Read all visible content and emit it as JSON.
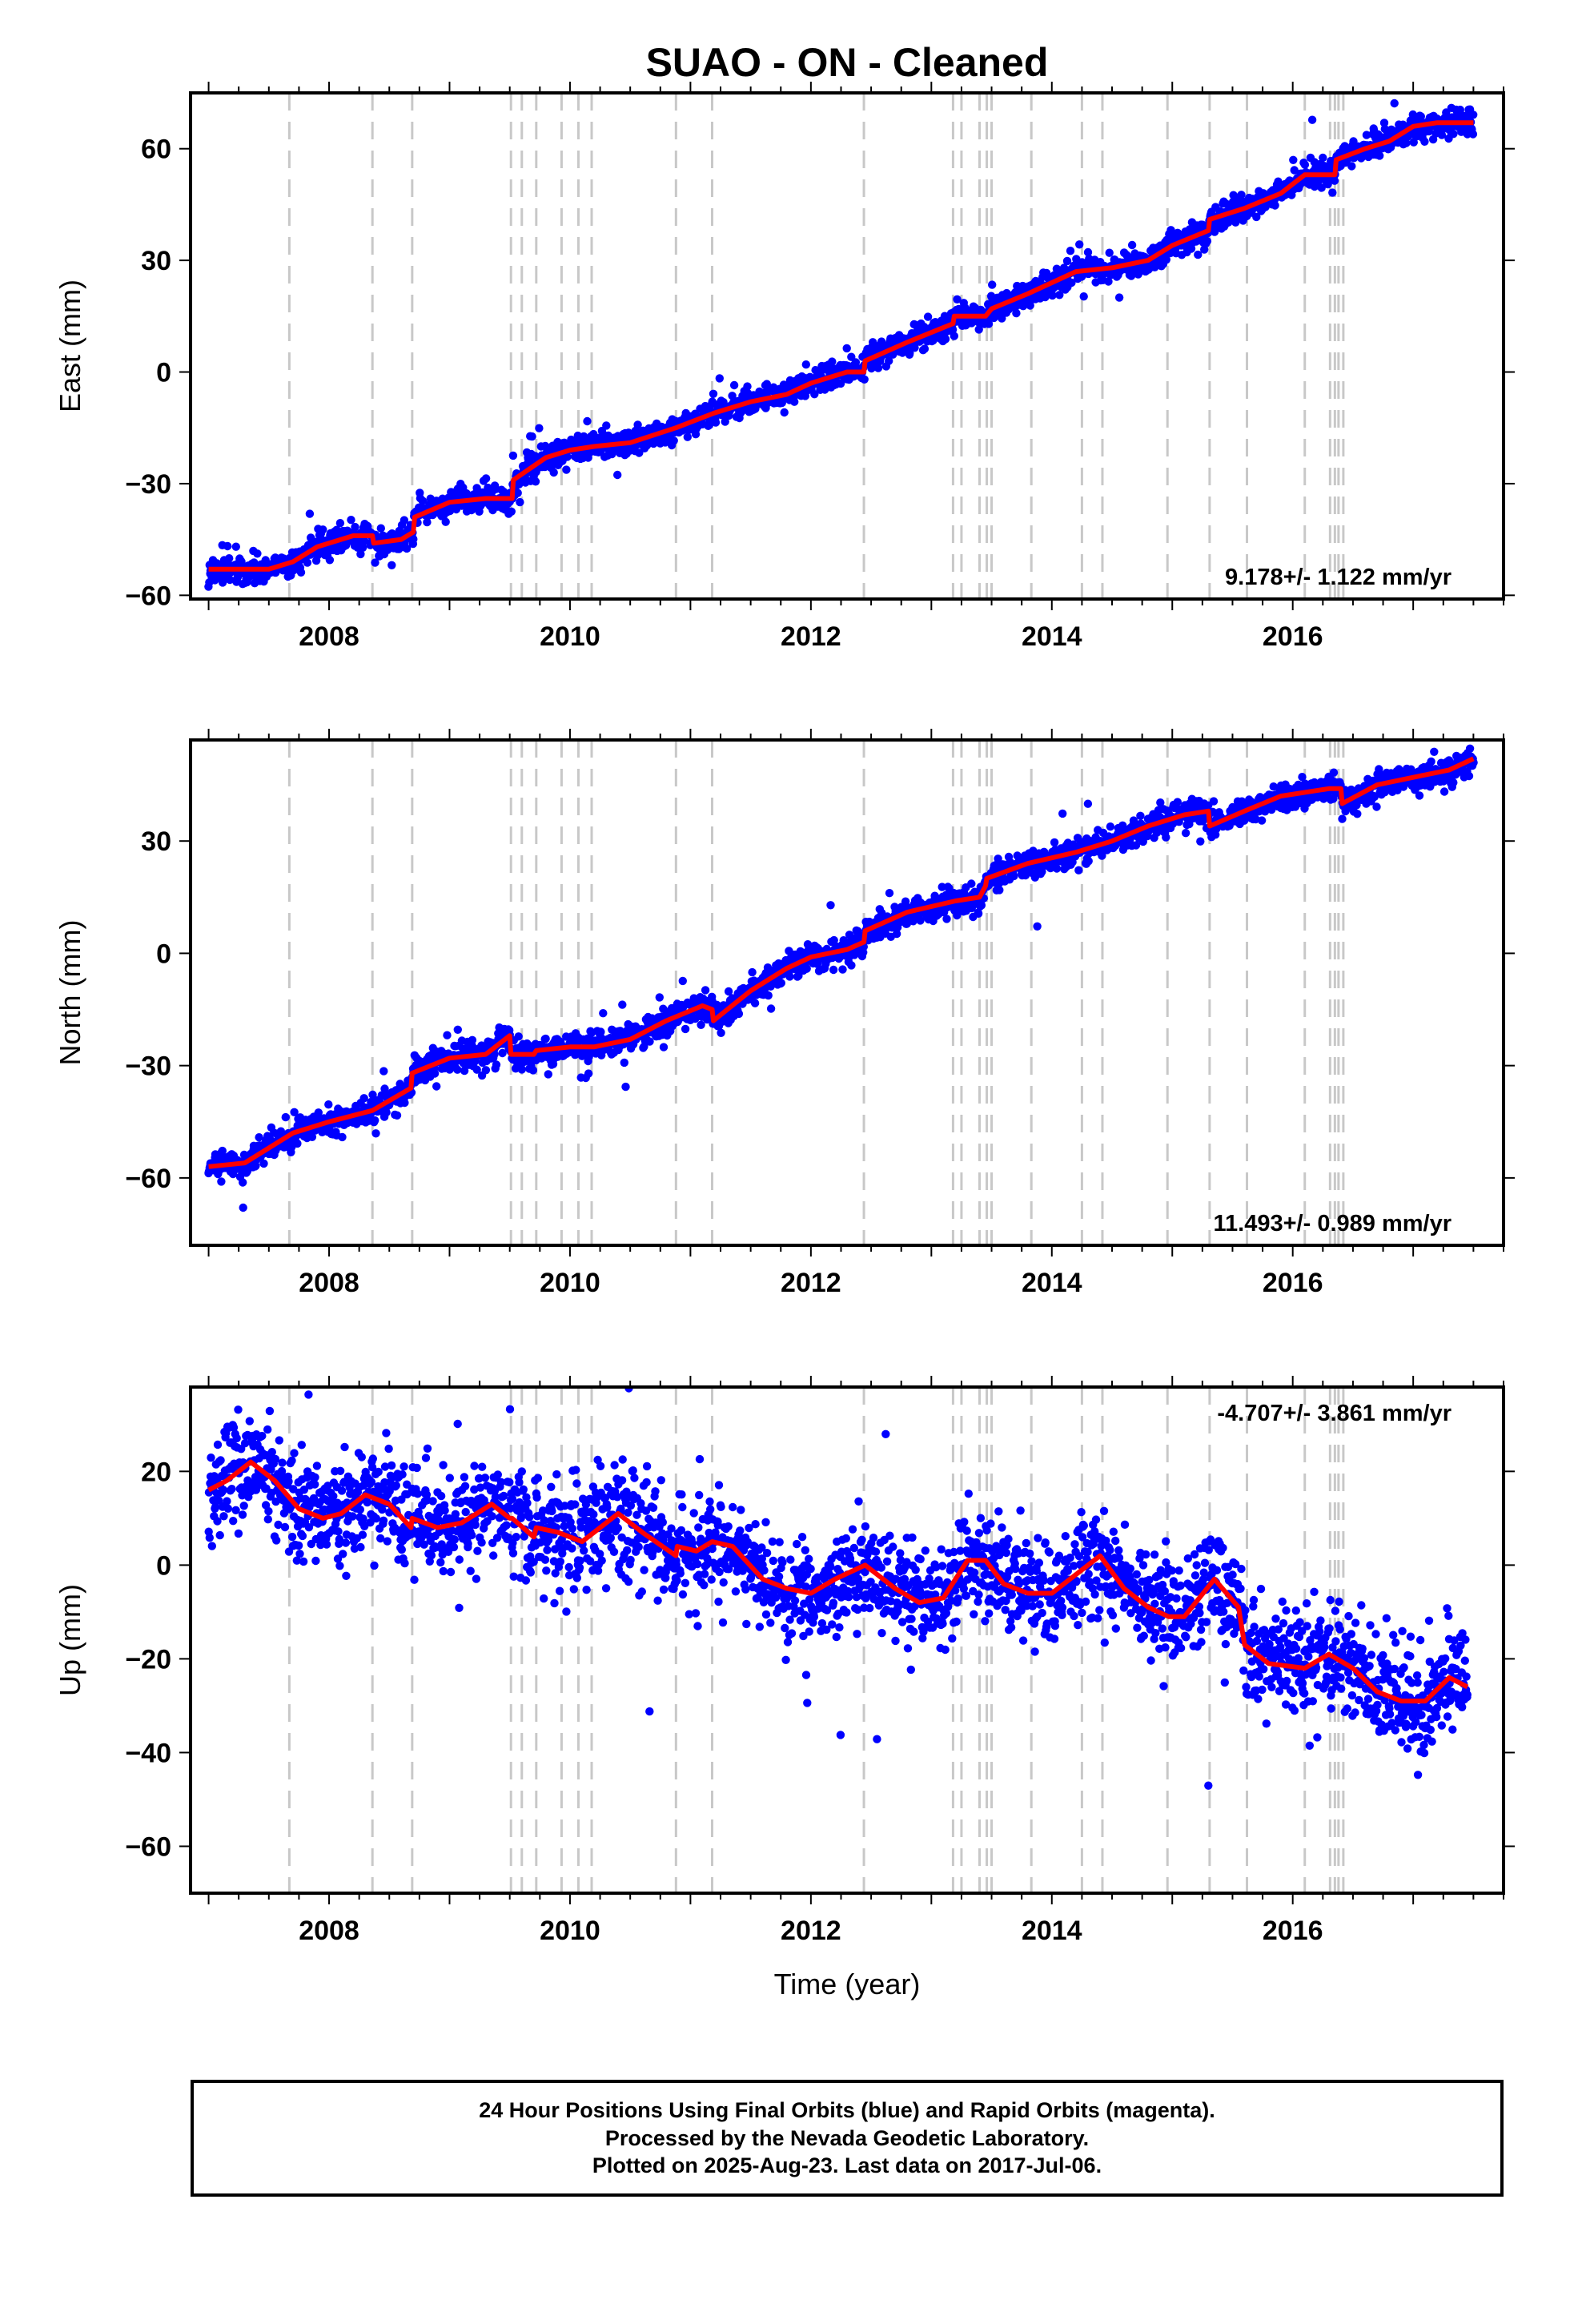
{
  "title": "SUAO  - ON - Cleaned",
  "x_axis_label": "Time (year)",
  "footer": {
    "line1": "24 Hour Positions Using Final Orbits (blue) and Rapid Orbits (magenta).",
    "line2": "Processed by the Nevada Geodetic Laboratory.",
    "line3": "Plotted on 2025-Aug-23. Last data on 2017-Jul-06."
  },
  "colors": {
    "points": "#0000ff",
    "model": "#ff0000",
    "event_lines": "#c8c8c8",
    "axes": "#000000"
  },
  "chart_data": [
    {
      "type": "scatter",
      "id": "east",
      "ylabel": "East (mm)",
      "xlim": [
        2006.85,
        2017.75
      ],
      "ylim": [
        -61,
        75
      ],
      "yticks": [
        -60,
        -30,
        0,
        30,
        60
      ],
      "xticks": [
        2008,
        2010,
        2012,
        2014,
        2016
      ],
      "rate_text": "9.178+/- 1.122 mm/yr",
      "rate_position": "bottom-right",
      "model_line": {
        "x": [
          2007.0,
          2007.5,
          2007.7,
          2007.9,
          2008.2,
          2008.36,
          2008.37,
          2008.6,
          2008.7,
          2008.71,
          2009.0,
          2009.3,
          2009.52,
          2009.53,
          2009.8,
          2010.0,
          2010.2,
          2010.5,
          2010.88,
          2011.2,
          2011.5,
          2011.8,
          2012.0,
          2012.3,
          2012.44,
          2012.45,
          2012.8,
          2013.18,
          2013.19,
          2013.45,
          2013.5,
          2013.8,
          2014.2,
          2014.5,
          2014.8,
          2015.0,
          2015.3,
          2015.31,
          2015.6,
          2015.9,
          2016.1,
          2016.3,
          2016.35,
          2016.36,
          2016.6,
          2016.8,
          2017.0,
          2017.2,
          2017.5
        ],
        "y": [
          -53,
          -53,
          -51,
          -47,
          -44,
          -44,
          -46,
          -45,
          -43,
          -39,
          -35,
          -34,
          -34,
          -29,
          -23,
          -21,
          -20,
          -19,
          -15,
          -11,
          -8,
          -6,
          -3,
          0,
          0,
          3,
          8,
          13,
          15,
          15,
          17,
          21,
          27,
          28,
          30,
          34,
          38,
          41,
          44,
          48,
          53,
          53,
          53,
          57,
          60,
          62,
          66,
          67,
          67
        ]
      },
      "noise_sd": 1.7
    },
    {
      "type": "scatter",
      "id": "north",
      "ylabel": "North (mm)",
      "xlim": [
        2006.85,
        2017.75
      ],
      "ylim": [
        -78,
        57
      ],
      "yticks": [
        -60,
        -30,
        0,
        30
      ],
      "xticks": [
        2008,
        2010,
        2012,
        2014,
        2016
      ],
      "rate_text": "11.493+/- 0.989 mm/yr",
      "rate_position": "bottom-right",
      "model_line": {
        "x": [
          2007.0,
          2007.3,
          2007.7,
          2008.0,
          2008.36,
          2008.68,
          2008.69,
          2009.0,
          2009.3,
          2009.5,
          2009.51,
          2009.7,
          2009.72,
          2010.0,
          2010.2,
          2010.5,
          2010.8,
          2011.1,
          2011.18,
          2011.19,
          2011.5,
          2011.8,
          2012.0,
          2012.3,
          2012.44,
          2012.45,
          2012.8,
          2013.2,
          2013.4,
          2013.45,
          2013.46,
          2013.8,
          2014.2,
          2014.5,
          2014.8,
          2015.1,
          2015.3,
          2015.31,
          2015.6,
          2015.9,
          2016.3,
          2016.4,
          2016.41,
          2016.7,
          2017.0,
          2017.3,
          2017.5
        ],
        "y": [
          -57,
          -56,
          -48,
          -45,
          -42,
          -36,
          -32,
          -28,
          -27,
          -22,
          -27,
          -27,
          -26,
          -25,
          -25,
          -23,
          -18,
          -14,
          -15,
          -18,
          -10,
          -4,
          -1,
          1,
          3,
          6,
          11,
          14,
          15,
          18,
          20,
          24,
          27,
          30,
          34,
          37,
          38,
          34,
          38,
          42,
          44,
          44,
          40,
          45,
          47,
          49,
          52
        ]
      },
      "noise_sd": 1.8
    },
    {
      "type": "scatter",
      "id": "up",
      "ylabel": "Up (mm)",
      "xlim": [
        2006.85,
        2017.75
      ],
      "ylim": [
        -70,
        38
      ],
      "yticks": [
        -60,
        -40,
        -20,
        0,
        20
      ],
      "xticks": [
        2008,
        2010,
        2012,
        2014,
        2016
      ],
      "rate_text": "-4.707+/- 3.861 mm/yr",
      "rate_position": "top-right",
      "model_line": {
        "x": [
          2007.0,
          2007.15,
          2007.35,
          2007.55,
          2007.75,
          2007.95,
          2008.1,
          2008.3,
          2008.5,
          2008.68,
          2008.69,
          2008.9,
          2009.1,
          2009.35,
          2009.5,
          2009.52,
          2009.7,
          2009.72,
          2009.9,
          2010.1,
          2010.4,
          2010.6,
          2010.88,
          2010.89,
          2011.05,
          2011.18,
          2011.35,
          2011.6,
          2011.8,
          2012.0,
          2012.2,
          2012.45,
          2012.7,
          2012.9,
          2013.1,
          2013.3,
          2013.45,
          2013.6,
          2013.8,
          2014.0,
          2014.2,
          2014.4,
          2014.6,
          2014.8,
          2014.97,
          2015.1,
          2015.35,
          2015.55,
          2015.6,
          2015.8,
          2016.1,
          2016.3,
          2016.5,
          2016.7,
          2016.9,
          2017.1,
          2017.3,
          2017.45
        ],
        "y": [
          16,
          18,
          22,
          18,
          12,
          10,
          11,
          15,
          13,
          8,
          10,
          8,
          9,
          13,
          10,
          10,
          6,
          8,
          7,
          5,
          11,
          7,
          2,
          4,
          3,
          5,
          4,
          -3,
          -5,
          -6,
          -3,
          0,
          -5,
          -8,
          -7,
          1,
          1,
          -4,
          -6,
          -6,
          -2,
          2,
          -5,
          -9,
          -11,
          -11,
          -3,
          -9,
          -17,
          -21,
          -22,
          -19,
          -22,
          -27,
          -29,
          -29,
          -24,
          -26
        ]
      },
      "noise_sd": 5.5
    }
  ],
  "event_lines": [
    2007.67,
    2008.36,
    2008.69,
    2009.51,
    2009.6,
    2009.72,
    2009.93,
    2010.07,
    2010.18,
    2010.88,
    2011.18,
    2012.44,
    2013.18,
    2013.25,
    2013.4,
    2013.46,
    2013.5,
    2013.83,
    2014.25,
    2014.42,
    2014.96,
    2015.31,
    2015.62,
    2016.1,
    2016.31,
    2016.35,
    2016.38,
    2016.42
  ]
}
